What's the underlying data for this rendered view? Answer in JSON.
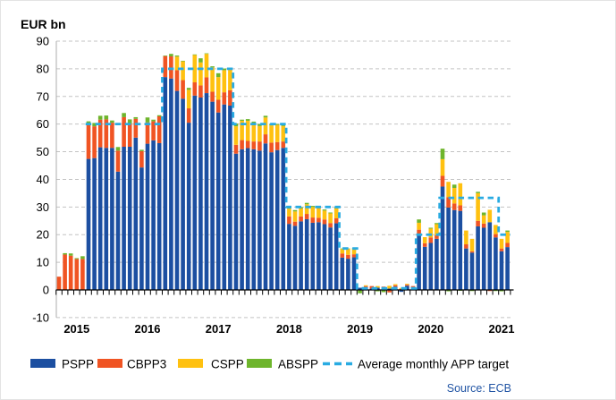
{
  "title": "EUR bn",
  "source": "Source: ECB",
  "chart_data": {
    "type": "bar",
    "stacked": true,
    "title": "EUR bn",
    "ylabel": "EUR bn",
    "ylim": [
      -10,
      90
    ],
    "ytick_step": 10,
    "yticks": [
      -10,
      0,
      10,
      20,
      30,
      40,
      50,
      60,
      70,
      80,
      90
    ],
    "grid": "horizontal-dashed",
    "legend_position": "bottom",
    "x_year_labels": [
      2015,
      2016,
      2017,
      2018,
      2019,
      2020,
      2021
    ],
    "months": [
      "2014-10",
      "2014-11",
      "2014-12",
      "2015-01",
      "2015-02",
      "2015-03",
      "2015-04",
      "2015-05",
      "2015-06",
      "2015-07",
      "2015-08",
      "2015-09",
      "2015-10",
      "2015-11",
      "2015-12",
      "2016-01",
      "2016-02",
      "2016-03",
      "2016-04",
      "2016-05",
      "2016-06",
      "2016-07",
      "2016-08",
      "2016-09",
      "2016-10",
      "2016-11",
      "2016-12",
      "2017-01",
      "2017-02",
      "2017-03",
      "2017-04",
      "2017-05",
      "2017-06",
      "2017-07",
      "2017-08",
      "2017-09",
      "2017-10",
      "2017-11",
      "2017-12",
      "2018-01",
      "2018-02",
      "2018-03",
      "2018-04",
      "2018-05",
      "2018-06",
      "2018-07",
      "2018-08",
      "2018-09",
      "2018-10",
      "2018-11",
      "2018-12",
      "2019-01",
      "2019-02",
      "2019-03",
      "2019-04",
      "2019-05",
      "2019-06",
      "2019-07",
      "2019-08",
      "2019-09",
      "2019-10",
      "2019-11",
      "2019-12",
      "2020-01",
      "2020-02",
      "2020-03",
      "2020-04",
      "2020-05",
      "2020-06",
      "2020-07",
      "2020-08",
      "2020-09",
      "2020-10",
      "2020-11",
      "2020-12",
      "2021-01",
      "2021-02"
    ],
    "series": [
      {
        "name": "PSPP",
        "color": "#1C4FA1",
        "values": [
          0,
          0,
          0,
          0,
          0,
          47.4,
          47.7,
          51.6,
          51.4,
          51.4,
          42.8,
          51.8,
          51.8,
          55.1,
          44.3,
          52.9,
          54.1,
          53.1,
          77.0,
          76.5,
          72.0,
          69.2,
          60.5,
          70.3,
          69.6,
          71.2,
          68.1,
          64.2,
          67.1,
          66.7,
          49.3,
          50.9,
          51.3,
          50.9,
          50.4,
          53.0,
          49.8,
          50.6,
          51.4,
          23.9,
          23.2,
          24.8,
          25.6,
          24.3,
          24.5,
          23.8,
          22.6,
          24.1,
          11.7,
          11.3,
          11.8,
          0.8,
          1.0,
          0.5,
          0.8,
          0.8,
          0.5,
          1.2,
          -0.7,
          1.5,
          1.0,
          20.0,
          15.6,
          17.0,
          18.5,
          37.4,
          29.8,
          28.9,
          28.6,
          15.0,
          13.5,
          23.0,
          22.5,
          24.5,
          19.0,
          14.0,
          15.5
        ]
      },
      {
        "name": "CBPP3",
        "color": "#F05423",
        "values": [
          4.8,
          12.8,
          12.4,
          11.2,
          11.2,
          12.4,
          11.5,
          10.0,
          10.3,
          9.1,
          7.6,
          10.7,
          8.3,
          6.8,
          5.9,
          7.7,
          6.9,
          9.7,
          7.6,
          8.0,
          7.5,
          6.7,
          5.2,
          4.8,
          4.4,
          5.7,
          3.6,
          4.6,
          4.4,
          5.5,
          3.2,
          3.3,
          2.6,
          2.8,
          3.3,
          3.3,
          3.5,
          2.9,
          2.3,
          2.7,
          1.5,
          1.8,
          1.9,
          1.9,
          1.6,
          1.7,
          1.6,
          1.8,
          1.5,
          1.4,
          1.1,
          0,
          0.4,
          0.9,
          0,
          0.4,
          -0.9,
          0.5,
          0.4,
          0.4,
          0.4,
          1.8,
          1.3,
          2.0,
          1.3,
          3.9,
          3.8,
          2.4,
          2.0,
          1.5,
          0.5,
          2.0,
          1.5,
          -0.4,
          1.2,
          1.0,
          1.5
        ]
      },
      {
        "name": "CSPP",
        "color": "#FFC110",
        "values": [
          0,
          0,
          0,
          0,
          0,
          0,
          0,
          0,
          0,
          0,
          0,
          0,
          0,
          0,
          0,
          0,
          0,
          0,
          0,
          0,
          4.9,
          6.8,
          6.7,
          9.9,
          8.3,
          8.5,
          8.8,
          8.2,
          8.0,
          7.9,
          6.7,
          7.0,
          7.3,
          6.6,
          5.6,
          6.1,
          6.2,
          6.2,
          5.6,
          2.8,
          3.7,
          2.9,
          3.5,
          3.8,
          3.9,
          3.2,
          3.5,
          3.6,
          1.6,
          2.2,
          2.0,
          0,
          0.3,
          0,
          0.6,
          0,
          1.0,
          0.4,
          0.3,
          0.3,
          0,
          2.5,
          2.2,
          3.2,
          4.0,
          6.0,
          5.5,
          5.6,
          8.0,
          5.0,
          4.5,
          10.0,
          3.0,
          4.5,
          3.3,
          3.5,
          4.0
        ]
      },
      {
        "name": "ABSPP",
        "color": "#6EB52C",
        "values": [
          0,
          0.5,
          0.8,
          0.3,
          1.0,
          1.2,
          1.2,
          1.4,
          1.4,
          0.8,
          1.3,
          1.5,
          1.6,
          0.6,
          0.5,
          1.8,
          0.6,
          0.4,
          0.2,
          0.9,
          0.4,
          0.2,
          0.7,
          0.2,
          1.5,
          0.2,
          0.4,
          1.4,
          0.6,
          0.2,
          1.0,
          0.4,
          0.6,
          0.6,
          0.7,
          0.6,
          0.5,
          0.3,
          0.7,
          0.7,
          0.5,
          0.4,
          0.5,
          0.4,
          0.3,
          0.4,
          0.3,
          0.4,
          0.2,
          0.1,
          0.2,
          -1.2,
          0,
          0,
          -0.5,
          -0.8,
          0,
          0,
          0,
          0,
          0,
          1.2,
          0,
          0.3,
          0.4,
          3.8,
          -0.5,
          1.2,
          -0.3,
          0,
          -0.4,
          0.5,
          1.0,
          0,
          -0.4,
          -0.5,
          0.5
        ]
      }
    ],
    "target_line": {
      "name": "Average monthly APP target",
      "color": "#29ABE2",
      "style": "dashed",
      "segments": [
        {
          "from": "2015-03",
          "to": "2016-03",
          "value": 60
        },
        {
          "from": "2016-04",
          "to": "2017-03",
          "value": 80
        },
        {
          "from": "2017-04",
          "to": "2017-12",
          "value": 60
        },
        {
          "from": "2018-01",
          "to": "2018-09",
          "value": 30
        },
        {
          "from": "2018-10",
          "to": "2018-12",
          "value": 15
        },
        {
          "from": "2019-01",
          "to": "2019-10",
          "value": 0
        },
        {
          "from": "2019-11",
          "to": "2020-02",
          "value": 20
        },
        {
          "from": "2020-03",
          "to": "2020-12",
          "value": 33.3
        },
        {
          "from": "2021-01",
          "to": "2021-02",
          "value": 20
        }
      ]
    }
  }
}
